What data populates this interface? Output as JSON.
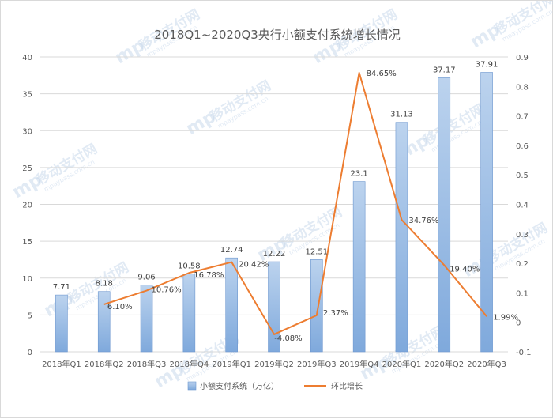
{
  "chart_data": {
    "type": "bar",
    "title": "2018Q1~2020Q3央行小额支付系统增长情况",
    "categories": [
      "2018年Q1",
      "2018年Q2",
      "2018年Q3",
      "2018年Q4",
      "2019年Q1",
      "2019年Q2",
      "2019年Q3",
      "2019年Q4",
      "2020年Q1",
      "2020年Q2",
      "2020年Q3"
    ],
    "series": [
      {
        "name": "小额支付系统（万亿）",
        "type": "bar",
        "axis": "left",
        "color": "#9dc3e6",
        "values": [
          7.71,
          8.18,
          9.06,
          10.58,
          12.74,
          12.22,
          12.51,
          23.1,
          31.13,
          37.17,
          37.91
        ],
        "labels": [
          "7.71",
          "8.18",
          "9.06",
          "10.58",
          "12.74",
          "12.22",
          "12.51",
          "23.1",
          "31.13",
          "37.17",
          "37.91"
        ]
      },
      {
        "name": "环比增长",
        "type": "line",
        "axis": "right",
        "color": "#ed7d31",
        "values": [
          null,
          0.061,
          0.1076,
          0.1678,
          0.2042,
          -0.0408,
          0.0237,
          0.8465,
          0.3476,
          0.194,
          0.0199
        ],
        "labels": [
          "",
          "6.10%",
          "10.76%",
          "16.78%",
          "20.42%",
          "-4.08%",
          "2.37%",
          "84.65%",
          "34.76%",
          "19.40%",
          "1.99%"
        ]
      }
    ],
    "y_left": {
      "min": 0,
      "max": 40,
      "ticks": [
        "0",
        "5",
        "10",
        "15",
        "20",
        "25",
        "30",
        "35",
        "40"
      ]
    },
    "y_right": {
      "min": -0.1,
      "max": 0.9,
      "ticks": [
        "-0.1",
        "0",
        "0.1",
        "0.2",
        "0.3",
        "0.4",
        "0.5",
        "0.6",
        "0.7",
        "0.8",
        "0.9"
      ]
    },
    "grid": true,
    "legend_position": "bottom"
  },
  "watermark": {
    "brand": "移动支付网",
    "url": "mpaypass.com.cn",
    "logo": "mp"
  }
}
